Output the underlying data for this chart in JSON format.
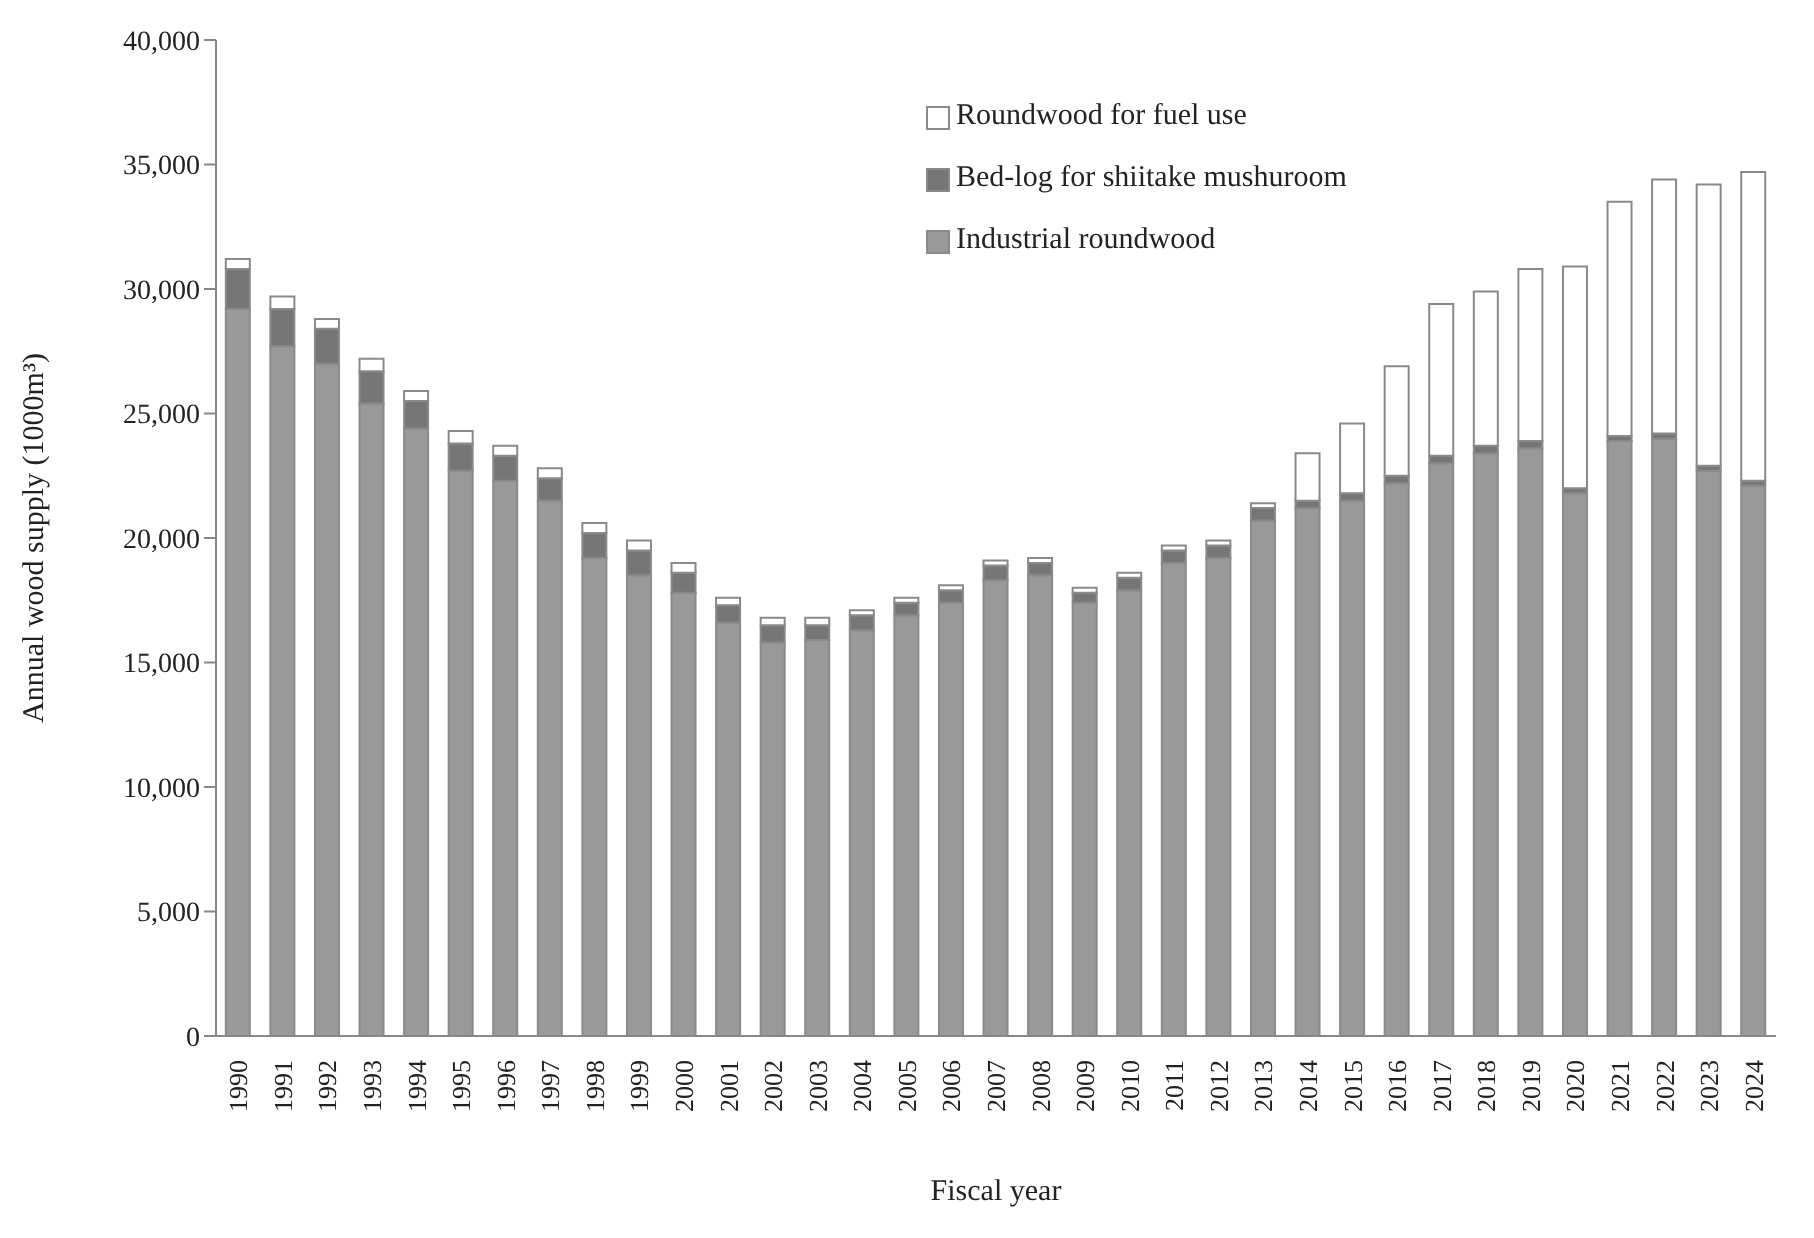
{
  "chart_data": {
    "type": "bar",
    "stacked": true,
    "xlabel": "Fiscal year",
    "ylabel": "Annual wood supply  (1000m³)",
    "categories": [
      "1990",
      "1991",
      "1992",
      "1993",
      "1994",
      "1995",
      "1996",
      "1997",
      "1998",
      "1999",
      "2000",
      "2001",
      "2002",
      "2003",
      "2004",
      "2005",
      "2006",
      "2007",
      "2008",
      "2009",
      "2010",
      "2011",
      "2012",
      "2013",
      "2014",
      "2015",
      "2016",
      "2017",
      "2018",
      "2019",
      "2020",
      "2021",
      "2022",
      "2023",
      "2024"
    ],
    "series": [
      {
        "name": "Industrial roundwood",
        "color": "#999999",
        "values": [
          29200,
          27700,
          27000,
          25400,
          24400,
          22700,
          22300,
          21500,
          19200,
          18500,
          17800,
          16600,
          15800,
          15900,
          16300,
          16900,
          17400,
          18300,
          18500,
          17400,
          17900,
          19000,
          19200,
          20700,
          21200,
          21500,
          22200,
          23000,
          23400,
          23600,
          21800,
          23900,
          24000,
          22700,
          22100
        ]
      },
      {
        "name": "Bed-log for shiitake mushuroom",
        "color": "#767676",
        "values": [
          1600,
          1500,
          1400,
          1300,
          1100,
          1100,
          1000,
          900,
          1000,
          1000,
          800,
          700,
          700,
          600,
          600,
          500,
          500,
          600,
          500,
          400,
          500,
          500,
          500,
          500,
          300,
          300,
          300,
          300,
          300,
          300,
          200,
          200,
          200,
          200,
          200
        ]
      },
      {
        "name": "Roundwood for fuel use",
        "color": "#ffffff",
        "values": [
          400,
          500,
          400,
          500,
          400,
          500,
          400,
          400,
          400,
          400,
          400,
          300,
          300,
          300,
          200,
          200,
          200,
          200,
          200,
          200,
          200,
          200,
          200,
          200,
          1900,
          2800,
          4400,
          6100,
          6200,
          6900,
          8900,
          9400,
          10200,
          11300,
          12400
        ]
      }
    ],
    "ylim": [
      0,
      40000
    ],
    "yticks": [
      {
        "value": 0,
        "label": "0"
      },
      {
        "value": 5000,
        "label": "5,000"
      },
      {
        "value": 10000,
        "label": "10,000"
      },
      {
        "value": 15000,
        "label": "15,000"
      },
      {
        "value": 20000,
        "label": "20,000"
      },
      {
        "value": 25000,
        "label": "25,000"
      },
      {
        "value": 30000,
        "label": "30,000"
      },
      {
        "value": 35000,
        "label": "35,000"
      },
      {
        "value": 40000,
        "label": "40,000"
      }
    ],
    "grid": false,
    "legend": "top right"
  }
}
